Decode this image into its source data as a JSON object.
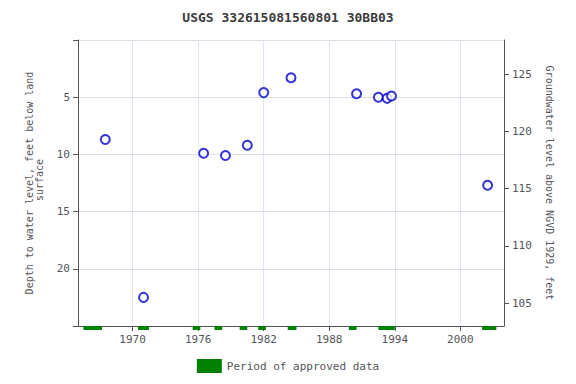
{
  "chart_data": {
    "type": "scatter",
    "title": "USGS 332615081560801 30BB03",
    "ylabel": "Depth to water level, feet below land\n surface",
    "y2label": "Groundwater level above NGVD 1929, feet",
    "x": [
      1967.5,
      1971.0,
      1976.5,
      1978.5,
      1980.5,
      1982.0,
      1984.5,
      1990.5,
      1992.5,
      1993.3,
      1993.7,
      2002.5
    ],
    "values": [
      8.7,
      22.5,
      9.9,
      10.1,
      9.2,
      4.6,
      3.3,
      4.7,
      5.0,
      5.1,
      4.9,
      12.7
    ],
    "color": "#0000cc",
    "marker": "open_circle",
    "xlim": [
      1965,
      2004
    ],
    "xticks": [
      1970,
      1976,
      1982,
      1988,
      1994,
      2000
    ],
    "ylim": [
      25,
      0
    ],
    "yticks": [
      5,
      10,
      15,
      20
    ],
    "y2lim": [
      103,
      128
    ],
    "y2ticks": [
      105,
      110,
      115,
      120,
      125
    ],
    "grid": true,
    "legend": "bottom",
    "approved_periods": {
      "name": "Period of approved data",
      "color": "#008000",
      "segments": [
        [
          1965.5,
          1967.2
        ],
        [
          1970.5,
          1971.5
        ],
        [
          1975.5,
          1976.2
        ],
        [
          1977.5,
          1978.2
        ],
        [
          1979.8,
          1980.5
        ],
        [
          1981.5,
          1982.2
        ],
        [
          1984.2,
          1985.0
        ],
        [
          1989.8,
          1990.5
        ],
        [
          1992.5,
          1994.0
        ],
        [
          2002.0,
          2003.3
        ]
      ]
    }
  }
}
